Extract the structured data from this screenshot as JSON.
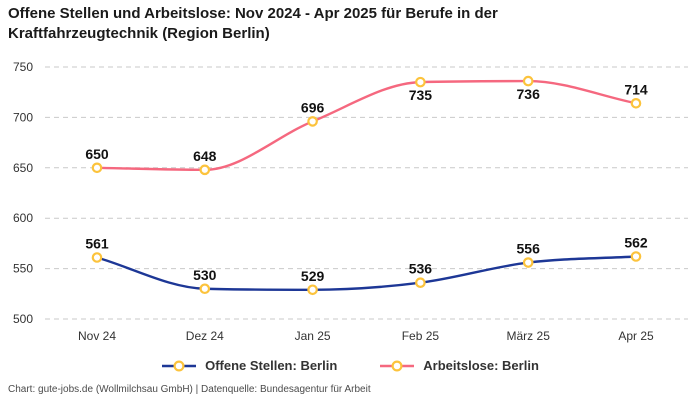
{
  "title": "Offene Stellen und Arbeitslose: Nov 2024 - Apr 2025 für Berufe in der Kraftfahrzeugtechnik (Region Berlin)",
  "footer": "Chart: gute-jobs.de (Wollmilchsau GmbH) | Datenquelle: Bundesagentur für Arbeit",
  "colors": {
    "offene_stellen_line": "#1d3796",
    "arbeitslose_line": "#f5687f",
    "marker_ring": "#fcc33c",
    "marker_fill": "#ffffff",
    "gridline": "#c9c9c9",
    "title_text": "#1a1a1a",
    "axis_text": "#333333",
    "footer_text": "#4b4b4b"
  },
  "chart_data": {
    "type": "line",
    "categories": [
      "Nov 24",
      "Dez 24",
      "Jan 25",
      "Feb 25",
      "März 25",
      "Apr 25"
    ],
    "series": [
      {
        "name": "Offene Stellen: Berlin",
        "color": "#1d3796",
        "values": [
          561,
          530,
          529,
          536,
          556,
          562
        ],
        "label_positions": [
          "above",
          "above",
          "above",
          "above",
          "above",
          "above"
        ]
      },
      {
        "name": "Arbeitslose: Berlin",
        "color": "#f5687f",
        "values": [
          650,
          648,
          696,
          735,
          736,
          714
        ],
        "label_positions": [
          "above",
          "above",
          "above",
          "below",
          "below",
          "above"
        ]
      }
    ],
    "ylim": [
      500,
      750
    ],
    "yticks": [
      500,
      550,
      600,
      650,
      700,
      750
    ],
    "grid": "horizontal-dashed",
    "smoothing": "monotone",
    "markers": "open-circle-yellow",
    "legend_position": "bottom",
    "xlabel": "",
    "ylabel": ""
  }
}
